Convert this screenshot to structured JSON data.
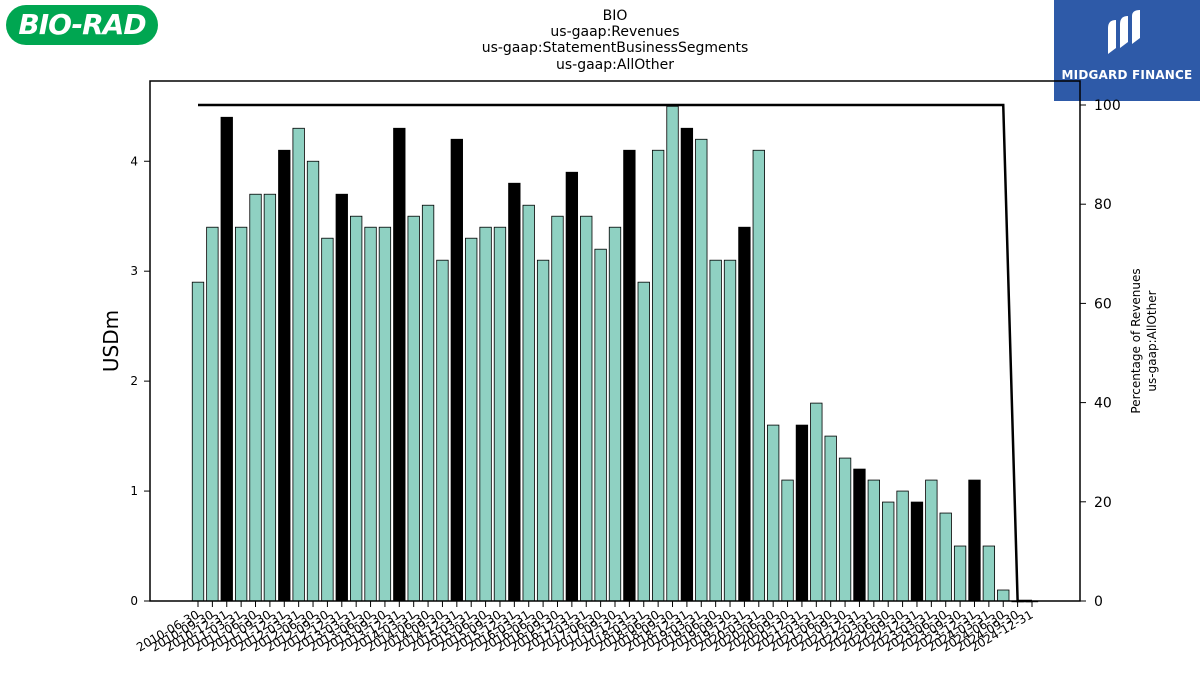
{
  "logos": {
    "left_text": "BIO-RAD",
    "right_text": "MIDGARD FINANCE"
  },
  "chart_data": {
    "type": "bar",
    "title_lines": [
      "BIO",
      "us-gaap:Revenues",
      "us-gaap:StatementBusinessSegments",
      "us-gaap:AllOther"
    ],
    "ylabel": "USDm",
    "ylabel_right": [
      "Percentage of Revenues",
      "us-gaap:AllOther"
    ],
    "ylim": [
      0,
      4.73
    ],
    "ylim_right": [
      0,
      100
    ],
    "yticks": [
      "0",
      "1",
      "2",
      "3",
      "4"
    ],
    "yticks_right": [
      "0",
      "20",
      "40",
      "60",
      "80",
      "100"
    ],
    "legend": "none",
    "grid": false,
    "colors": {
      "quarter_bar": "#8fd1c2",
      "year_end_bar": "#000000",
      "percentage_line": "#000000"
    },
    "categories": [
      "2010-06-30",
      "2010-09-30",
      "2010-12-31",
      "2011-03-31",
      "2011-06-30",
      "2011-09-30",
      "2011-12-31",
      "2012-03-31",
      "2012-06-30",
      "2012-09-30",
      "2012-12-31",
      "2013-03-31",
      "2013-06-30",
      "2013-09-30",
      "2013-12-31",
      "2014-03-31",
      "2014-06-30",
      "2014-09-30",
      "2014-12-31",
      "2015-03-31",
      "2015-06-30",
      "2015-09-30",
      "2015-12-31",
      "2016-03-31",
      "2016-06-30",
      "2016-09-30",
      "2016-12-31",
      "2017-03-31",
      "2017-06-30",
      "2017-09-30",
      "2017-12-31",
      "2018-03-31",
      "2018-06-30",
      "2018-09-30",
      "2018-12-31",
      "2019-03-31",
      "2019-06-30",
      "2019-09-30",
      "2019-12-31",
      "2020-03-31",
      "2020-06-30",
      "2020-09-30",
      "2020-12-31",
      "2021-03-31",
      "2021-06-30",
      "2021-09-30",
      "2021-12-31",
      "2022-03-31",
      "2022-06-30",
      "2022-09-30",
      "2022-12-31",
      "2023-03-31",
      "2023-06-30",
      "2023-09-30",
      "2023-12-31",
      "2024-03-31",
      "2024-06-30",
      "2024-09-30",
      "2024-12-31"
    ],
    "values": [
      2.9,
      3.4,
      4.4,
      3.4,
      3.7,
      3.7,
      4.1,
      4.3,
      4.0,
      3.3,
      3.7,
      3.5,
      3.4,
      3.4,
      4.3,
      3.5,
      3.6,
      3.1,
      4.2,
      3.3,
      3.4,
      3.4,
      3.8,
      3.6,
      3.1,
      3.5,
      3.9,
      3.5,
      3.2,
      3.4,
      4.1,
      2.9,
      4.1,
      4.5,
      4.3,
      4.2,
      3.1,
      3.1,
      3.4,
      4.1,
      1.6,
      1.1,
      1.6,
      1.8,
      1.5,
      1.3,
      1.2,
      1.1,
      0.9,
      1.0,
      0.9,
      1.1,
      0.8,
      0.5,
      1.1,
      0.5,
      0.1,
      0.0,
      0.0
    ],
    "year_end": [
      false,
      false,
      true,
      false,
      false,
      false,
      true,
      false,
      false,
      false,
      true,
      false,
      false,
      false,
      true,
      false,
      false,
      false,
      true,
      false,
      false,
      false,
      true,
      false,
      false,
      false,
      true,
      false,
      false,
      false,
      true,
      false,
      false,
      false,
      true,
      false,
      false,
      false,
      true,
      false,
      false,
      false,
      true,
      false,
      false,
      false,
      true,
      false,
      false,
      false,
      true,
      false,
      false,
      false,
      true,
      false,
      false,
      false,
      true
    ],
    "percentage_of_revenues": [
      100,
      100,
      100,
      100,
      100,
      100,
      100,
      100,
      100,
      100,
      100,
      100,
      100,
      100,
      100,
      100,
      100,
      100,
      100,
      100,
      100,
      100,
      100,
      100,
      100,
      100,
      100,
      100,
      100,
      100,
      100,
      100,
      100,
      100,
      100,
      100,
      100,
      100,
      100,
      100,
      100,
      100,
      100,
      100,
      100,
      100,
      100,
      100,
      100,
      100,
      100,
      100,
      100,
      100,
      100,
      100,
      100,
      0,
      0
    ]
  }
}
